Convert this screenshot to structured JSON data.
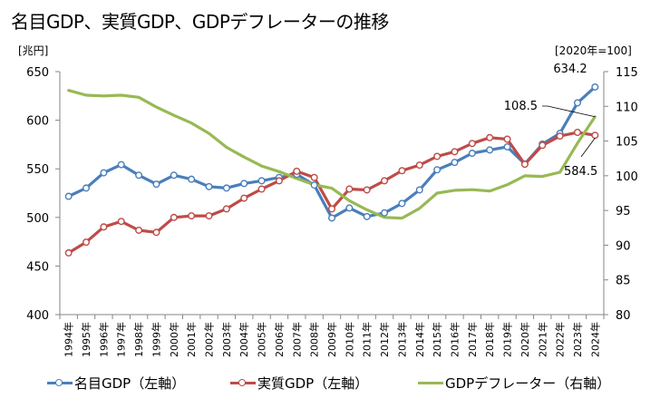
{
  "chart_data": {
    "type": "line",
    "title": "名目GDP、実質GDP、GDPデフレーターの推移",
    "ylabel_left": "[兆円]",
    "ylabel_right": "[2020年=100]",
    "xlabel": "",
    "ylim_left": [
      400,
      650
    ],
    "yticks_left": [
      "400",
      "450",
      "500",
      "550",
      "600",
      "650"
    ],
    "ylim_right": [
      80,
      115
    ],
    "yticks_right": [
      "80",
      "85",
      "90",
      "95",
      "100",
      "105",
      "110",
      "115"
    ],
    "grid": false,
    "legend_position": "bottom",
    "categories": [
      "1994年",
      "1995年",
      "1996年",
      "1997年",
      "1998年",
      "1999年",
      "2000年",
      "2001年",
      "2002年",
      "2003年",
      "2004年",
      "2005年",
      "2006年",
      "2007年",
      "2008年",
      "2009年",
      "2010年",
      "2011年",
      "2012年",
      "2013年",
      "2014年",
      "2015年",
      "2016年",
      "2017年",
      "2018年",
      "2019年",
      "2020年",
      "2021年",
      "2022年",
      "2023年",
      "2024年"
    ],
    "series": [
      {
        "name": "名目GDP（左軸）",
        "axis": "left",
        "color": "#4a7ebb",
        "markers": true,
        "values": [
          521.7,
          530.2,
          545.9,
          554.3,
          543.4,
          534.2,
          543.4,
          539.3,
          531.7,
          530.2,
          534.9,
          537.7,
          541.1,
          544.3,
          533.3,
          499.4,
          509.7,
          500.9,
          504.7,
          514.4,
          528.3,
          549.0,
          556.6,
          566.0,
          569.4,
          572.6,
          555.0,
          575.5,
          586.5,
          617.9,
          634.2
        ]
      },
      {
        "name": "実質GDP（左軸）",
        "axis": "left",
        "color": "#be4b48",
        "markers": true,
        "values": [
          463.5,
          474.5,
          490.2,
          495.9,
          486.8,
          484.6,
          500.0,
          501.6,
          501.6,
          508.8,
          519.8,
          529.2,
          537.7,
          547.5,
          541.1,
          508.8,
          529.2,
          528.3,
          537.7,
          548.1,
          553.8,
          562.8,
          567.6,
          576.1,
          582.1,
          580.5,
          554.7,
          574.2,
          583.7,
          587.5,
          584.5
        ]
      },
      {
        "name": "GDPデフレーター（右軸）",
        "axis": "right",
        "color": "#98b954",
        "markers": false,
        "values": [
          112.3,
          111.6,
          111.5,
          111.6,
          111.3,
          109.9,
          108.7,
          107.6,
          106.1,
          104.1,
          102.7,
          101.4,
          100.6,
          99.6,
          98.7,
          98.2,
          96.4,
          95.1,
          94.0,
          93.9,
          95.3,
          97.5,
          97.9,
          98.0,
          97.8,
          98.7,
          100.0,
          99.9,
          100.5,
          104.7,
          108.5
        ]
      }
    ],
    "annotations": [
      {
        "text": "634.2",
        "series": "名目GDP（左軸）",
        "category": "2024年"
      },
      {
        "text": "108.5",
        "series": "GDPデフレーター（右軸）",
        "category": "2024年"
      },
      {
        "text": "584.5",
        "series": "実質GDP（左軸）",
        "category": "2024年"
      }
    ]
  }
}
